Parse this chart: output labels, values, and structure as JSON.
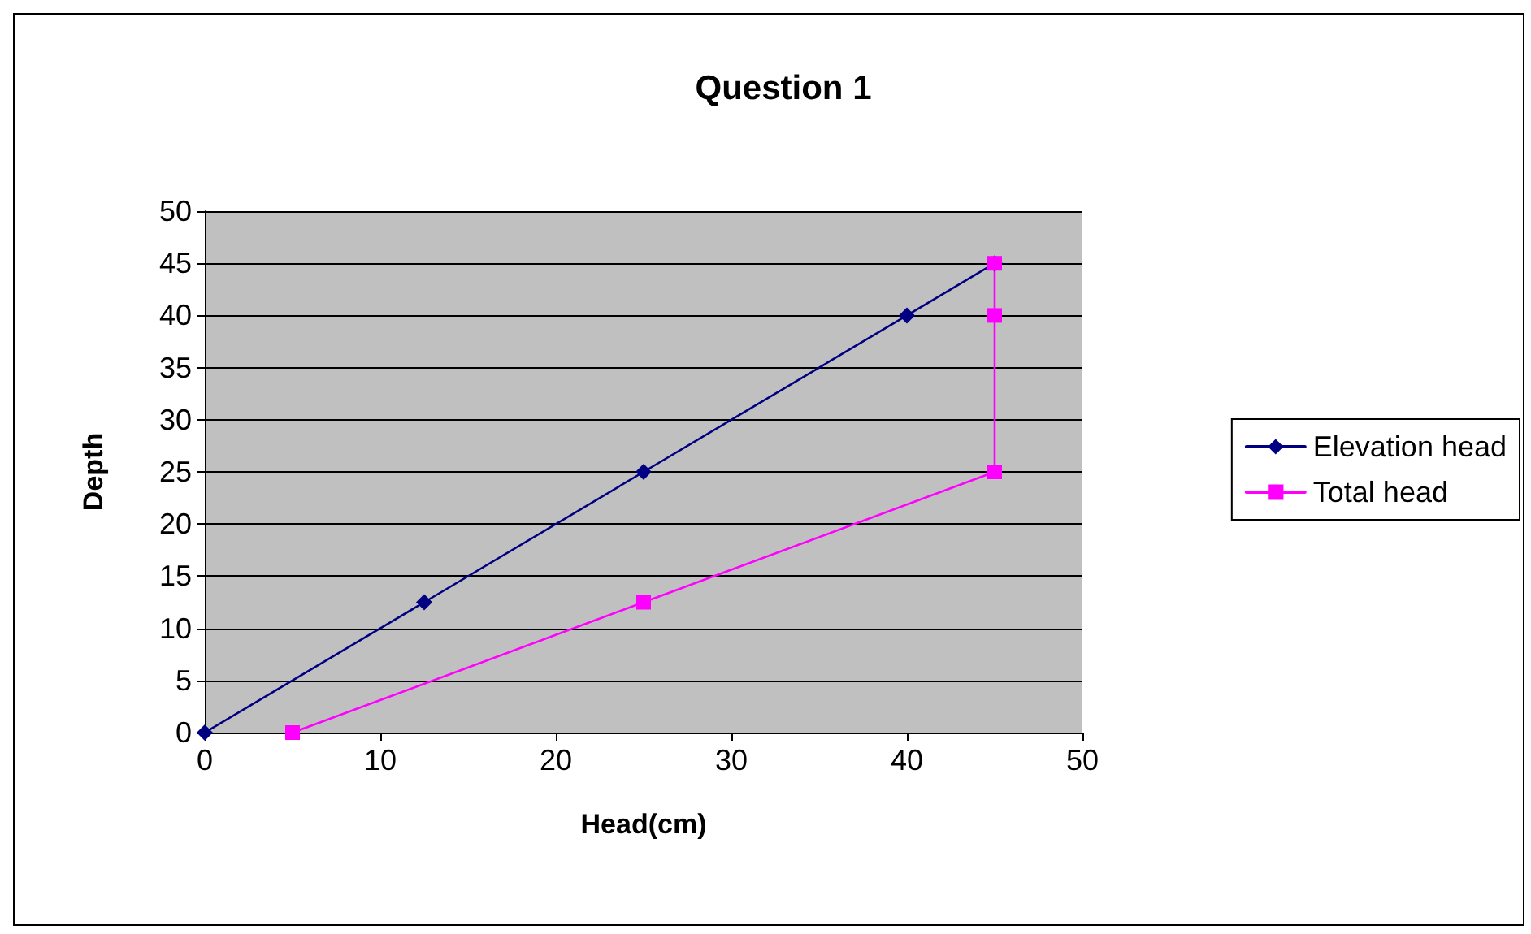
{
  "chart_data": {
    "type": "line",
    "title": "Question 1",
    "xlabel": "Head(cm)",
    "ylabel": "Depth",
    "series": [
      {
        "name": "Elevation head",
        "color": "#000080",
        "marker": "diamond",
        "x": [
          0,
          12.5,
          25,
          40,
          45
        ],
        "values": [
          0,
          12.5,
          25,
          40,
          45
        ]
      },
      {
        "name": "Total head",
        "color": "#ff00ff",
        "marker": "square",
        "x": [
          5,
          25,
          45,
          45,
          45
        ],
        "values": [
          0,
          12.5,
          25,
          40,
          45
        ]
      }
    ],
    "xlim": [
      0,
      50
    ],
    "xticks": [
      0,
      10,
      20,
      30,
      40,
      50
    ],
    "ylim": [
      0,
      50
    ],
    "yticks": [
      0,
      5,
      10,
      15,
      20,
      25,
      30,
      35,
      40,
      45,
      50
    ],
    "grid": "y",
    "legend": "right",
    "line_style": "solid"
  }
}
